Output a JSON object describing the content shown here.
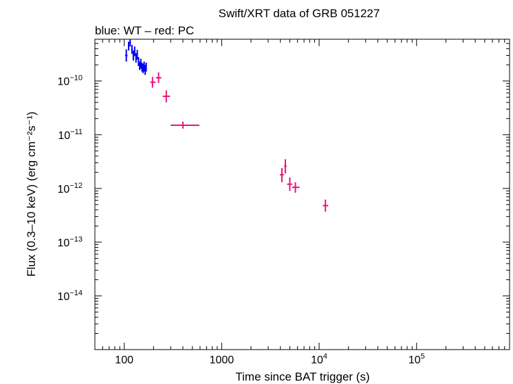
{
  "chart_data": {
    "type": "scatter",
    "title": "Swift/XRT data of GRB 051227",
    "subtitle": "blue: WT – red: PC",
    "xlabel": "Time since BAT trigger (s)",
    "ylabel": "Flux (0.3–10 keV) (erg cm⁻²s⁻¹)",
    "x_scale": "log",
    "y_scale": "log",
    "xlim": [
      50,
      900000
    ],
    "ylim": [
      1e-15,
      6e-10
    ],
    "grid": false,
    "x_ticks": [
      {
        "value": 100,
        "label": "100"
      },
      {
        "value": 1000,
        "label": "1000"
      },
      {
        "value": 10000,
        "base": "10",
        "exp": "4"
      },
      {
        "value": 100000,
        "base": "10",
        "exp": "5"
      }
    ],
    "y_ticks": [
      {
        "value": 1e-10,
        "base": "10",
        "exp": "−10"
      },
      {
        "value": 1e-11,
        "base": "10",
        "exp": "−11"
      },
      {
        "value": 1e-12,
        "base": "10",
        "exp": "−12"
      },
      {
        "value": 1e-13,
        "base": "10",
        "exp": "−13"
      },
      {
        "value": 1e-14,
        "base": "10",
        "exp": "−14"
      }
    ],
    "series": [
      {
        "mode": "WT",
        "color": "#0000ee",
        "points": [
          {
            "x": 105,
            "xerr": [
              102,
              108
            ],
            "y": 3e-10,
            "yerr": [
              2.3e-10,
              3.9e-10
            ]
          },
          {
            "x": 111,
            "xerr": [
              109,
              113
            ],
            "y": 4.5e-10,
            "yerr": [
              3.7e-10,
              5.4e-10
            ]
          },
          {
            "x": 115,
            "xerr": [
              113,
              117
            ],
            "y": 5.2e-10,
            "yerr": [
              4.4e-10,
              6e-10
            ]
          },
          {
            "x": 120,
            "xerr": [
              118,
              122
            ],
            "y": 3.9e-10,
            "yerr": [
              3.2e-10,
              4.7e-10
            ]
          },
          {
            "x": 124,
            "xerr": [
              122,
              126
            ],
            "y": 3e-10,
            "yerr": [
              2.4e-10,
              3.7e-10
            ]
          },
          {
            "x": 128,
            "xerr": [
              126,
              130
            ],
            "y": 3.6e-10,
            "yerr": [
              2.9e-10,
              4.4e-10
            ]
          },
          {
            "x": 132,
            "xerr": [
              130,
              134
            ],
            "y": 2.7e-10,
            "yerr": [
              2.2e-10,
              3.3e-10
            ]
          },
          {
            "x": 136,
            "xerr": [
              134,
              138
            ],
            "y": 3.1e-10,
            "yerr": [
              2.5e-10,
              3.8e-10
            ]
          },
          {
            "x": 140,
            "xerr": [
              138,
              142
            ],
            "y": 2.3e-10,
            "yerr": [
              1.9e-10,
              2.8e-10
            ]
          },
          {
            "x": 144,
            "xerr": [
              142,
              146
            ],
            "y": 1.9e-10,
            "yerr": [
              1.6e-10,
              2.3e-10
            ]
          },
          {
            "x": 148,
            "xerr": [
              146,
              150
            ],
            "y": 2.1e-10,
            "yerr": [
              1.7e-10,
              2.6e-10
            ]
          },
          {
            "x": 152,
            "xerr": [
              150,
              154
            ],
            "y": 1.8e-10,
            "yerr": [
              1.5e-10,
              2.2e-10
            ]
          },
          {
            "x": 156,
            "xerr": [
              154,
              158
            ],
            "y": 1.7e-10,
            "yerr": [
              1.4e-10,
              2.1e-10
            ]
          },
          {
            "x": 160,
            "xerr": [
              158,
              162
            ],
            "y": 1.9e-10,
            "yerr": [
              1.5e-10,
              2.3e-10
            ]
          },
          {
            "x": 164,
            "xerr": [
              162,
              166
            ],
            "y": 1.6e-10,
            "yerr": [
              1.3e-10,
              2e-10
            ]
          },
          {
            "x": 168,
            "xerr": [
              166,
              170
            ],
            "y": 1.8e-10,
            "yerr": [
              1.5e-10,
              2.2e-10
            ]
          }
        ]
      },
      {
        "mode": "PC",
        "color": "#e8127e",
        "points": [
          {
            "x": 195,
            "xerr": [
              185,
              210
            ],
            "y": 9.5e-11,
            "yerr": [
              7.5e-11,
              1.2e-10
            ]
          },
          {
            "x": 225,
            "xerr": [
              212,
              240
            ],
            "y": 1.15e-10,
            "yerr": [
              9.2e-11,
              1.45e-10
            ]
          },
          {
            "x": 270,
            "xerr": [
              248,
              295
            ],
            "y": 5.2e-11,
            "yerr": [
              4e-11,
              6.7e-11
            ]
          },
          {
            "x": 400,
            "xerr": [
              300,
              590
            ],
            "y": 1.5e-11,
            "yerr": [
              1.3e-11,
              1.75e-11
            ]
          },
          {
            "x": 4150,
            "xerr": [
              3950,
              4350
            ],
            "y": 1.8e-12,
            "yerr": [
              1.3e-12,
              2.4e-12
            ]
          },
          {
            "x": 4500,
            "xerr": [
              4380,
              4640
            ],
            "y": 2.6e-12,
            "yerr": [
              1.9e-12,
              3.5e-12
            ]
          },
          {
            "x": 5000,
            "xerr": [
              4700,
              5300
            ],
            "y": 1.2e-12,
            "yerr": [
              9e-13,
              1.6e-12
            ]
          },
          {
            "x": 5700,
            "xerr": [
              5300,
              6300
            ],
            "y": 1.05e-12,
            "yerr": [
              8.3e-13,
              1.3e-12
            ]
          },
          {
            "x": 11600,
            "xerr": [
              10900,
              12400
            ],
            "y": 4.8e-13,
            "yerr": [
              3.7e-13,
              6.2e-13
            ]
          }
        ]
      }
    ]
  }
}
